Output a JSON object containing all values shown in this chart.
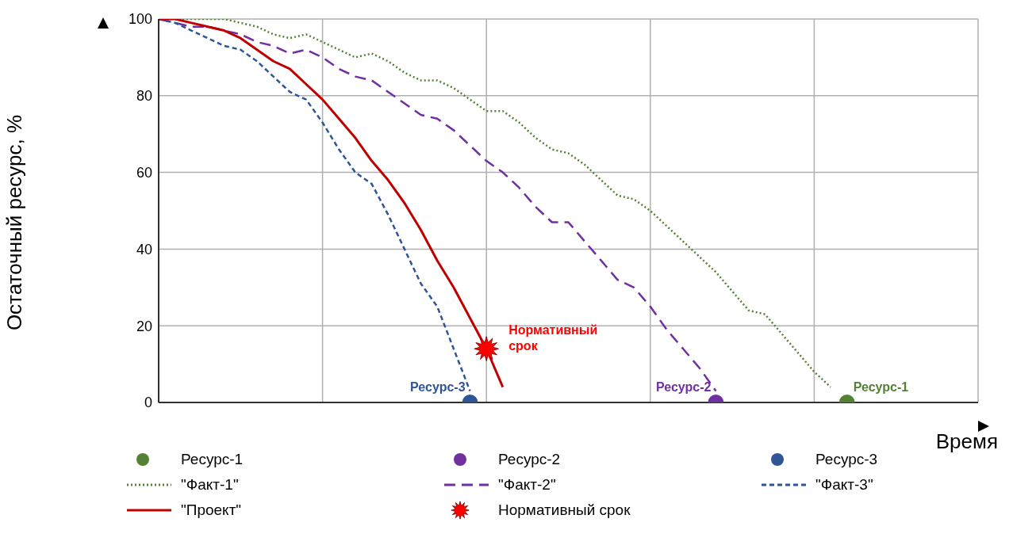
{
  "chart_data": {
    "type": "line",
    "xlabel": "Время",
    "ylabel": "Остаточный ресурс, %",
    "categories": [
      null,
      null,
      null,
      null,
      null,
      null,
      null,
      null,
      null,
      null,
      null,
      null,
      null,
      null,
      null,
      null,
      null,
      null,
      null,
      null,
      null,
      null,
      null,
      null,
      null,
      null,
      null,
      null,
      null,
      null,
      null,
      null,
      null,
      null,
      null,
      null,
      null,
      null,
      null,
      null,
      null,
      null,
      null,
      null,
      null,
      null,
      null,
      null,
      null,
      null,
      null
    ],
    "ylim": [
      0,
      100
    ],
    "yticks": [
      0,
      20,
      40,
      60,
      80,
      100
    ],
    "grid": true,
    "legend": "bottom",
    "series": [
      {
        "name": "Ресурс-1",
        "type": "scatter",
        "marker": "circle",
        "color": "#548235",
        "values": [
          null,
          null,
          null,
          null,
          null,
          null,
          null,
          null,
          null,
          null,
          null,
          null,
          null,
          null,
          null,
          null,
          null,
          null,
          null,
          null,
          null,
          null,
          null,
          null,
          null,
          null,
          null,
          null,
          null,
          null,
          null,
          null,
          null,
          null,
          null,
          null,
          null,
          null,
          null,
          null,
          null,
          null,
          0,
          null,
          null,
          null,
          null,
          null,
          null,
          null,
          null
        ]
      },
      {
        "name": "Ресурс-2",
        "type": "scatter",
        "marker": "circle",
        "color": "#7030a0",
        "values": [
          null,
          null,
          null,
          null,
          null,
          null,
          null,
          null,
          null,
          null,
          null,
          null,
          null,
          null,
          null,
          null,
          null,
          null,
          null,
          null,
          null,
          null,
          null,
          null,
          null,
          null,
          null,
          null,
          null,
          null,
          null,
          null,
          null,
          null,
          0,
          null,
          null,
          null,
          null,
          null,
          null,
          null,
          null,
          null,
          null,
          null,
          null,
          null,
          null,
          null,
          null
        ]
      },
      {
        "name": "Ресурс-3",
        "type": "scatter",
        "marker": "circle",
        "color": "#2f5597",
        "values": [
          null,
          null,
          null,
          null,
          null,
          null,
          null,
          null,
          null,
          null,
          null,
          null,
          null,
          null,
          null,
          null,
          null,
          null,
          null,
          0,
          null,
          null,
          null,
          null,
          null,
          null,
          null,
          null,
          null,
          null,
          null,
          null,
          null,
          null,
          null,
          null,
          null,
          null,
          null,
          null,
          null,
          null,
          null,
          null,
          null,
          null,
          null,
          null,
          null,
          null,
          null
        ]
      },
      {
        "name": "\"Факт-1\"",
        "line_style": "dotted",
        "color": "#548235",
        "values": [
          100,
          100,
          100,
          100,
          100,
          99,
          98,
          96,
          95,
          96,
          94,
          92,
          90,
          91,
          89,
          86,
          84,
          84,
          82,
          79,
          76,
          76,
          73,
          69,
          66,
          65,
          62,
          58,
          54,
          53,
          50,
          46,
          42,
          38,
          34,
          29,
          24,
          23,
          18,
          13,
          8,
          4,
          null,
          null,
          null,
          null,
          null,
          null,
          null,
          null,
          null
        ]
      },
      {
        "name": "\"Факт-2\"",
        "line_style": "dashed",
        "color": "#7030a0",
        "values": [
          100,
          99,
          98,
          98,
          97,
          96,
          94,
          93,
          91,
          92,
          90,
          87,
          85,
          84,
          81,
          78,
          75,
          74,
          71,
          67,
          63,
          60,
          56,
          51,
          47,
          47,
          42,
          37,
          32,
          30,
          25,
          19,
          14,
          9,
          3,
          null,
          null,
          null,
          null,
          null,
          null,
          null,
          null,
          null,
          null,
          null,
          null,
          null,
          null,
          null,
          null
        ]
      },
      {
        "name": "\"Факт-3\"",
        "line_style": "dashed",
        "color": "#2f5597",
        "values": [
          100,
          99,
          97,
          95,
          93,
          92,
          89,
          85,
          81,
          79,
          73,
          66,
          60,
          57,
          49,
          40,
          31,
          25,
          14,
          3,
          null,
          null,
          null,
          null,
          null,
          null,
          null,
          null,
          null,
          null,
          null,
          null,
          null,
          null,
          null,
          null,
          null,
          null,
          null,
          null,
          null,
          null,
          null,
          null,
          null,
          null,
          null,
          null,
          null,
          null,
          null
        ]
      },
      {
        "name": "\"Проект\"",
        "line_style": "solid",
        "color": "#c00000",
        "values": [
          100,
          100,
          99,
          98,
          97,
          95,
          92,
          89,
          87,
          83,
          79,
          74,
          69,
          63,
          58,
          52,
          45,
          37,
          30,
          22,
          14,
          4,
          null,
          null,
          null,
          null,
          null,
          null,
          null,
          null,
          null,
          null,
          null,
          null,
          null,
          null,
          null,
          null,
          null,
          null,
          null,
          null,
          null,
          null,
          null,
          null,
          null,
          null,
          null,
          null,
          null
        ]
      },
      {
        "name": "Нормативный срок",
        "type": "scatter",
        "marker": "star",
        "color": "#ff0000",
        "values": [
          null,
          null,
          null,
          null,
          null,
          null,
          null,
          null,
          null,
          null,
          null,
          null,
          null,
          null,
          null,
          null,
          null,
          null,
          null,
          null,
          14,
          null,
          null,
          null,
          null,
          null,
          null,
          null,
          null,
          null,
          null,
          null,
          null,
          null,
          null,
          null,
          null,
          null,
          null,
          null,
          null,
          null,
          null,
          null,
          null,
          null,
          null,
          null,
          null,
          null,
          null
        ]
      }
    ]
  }
}
